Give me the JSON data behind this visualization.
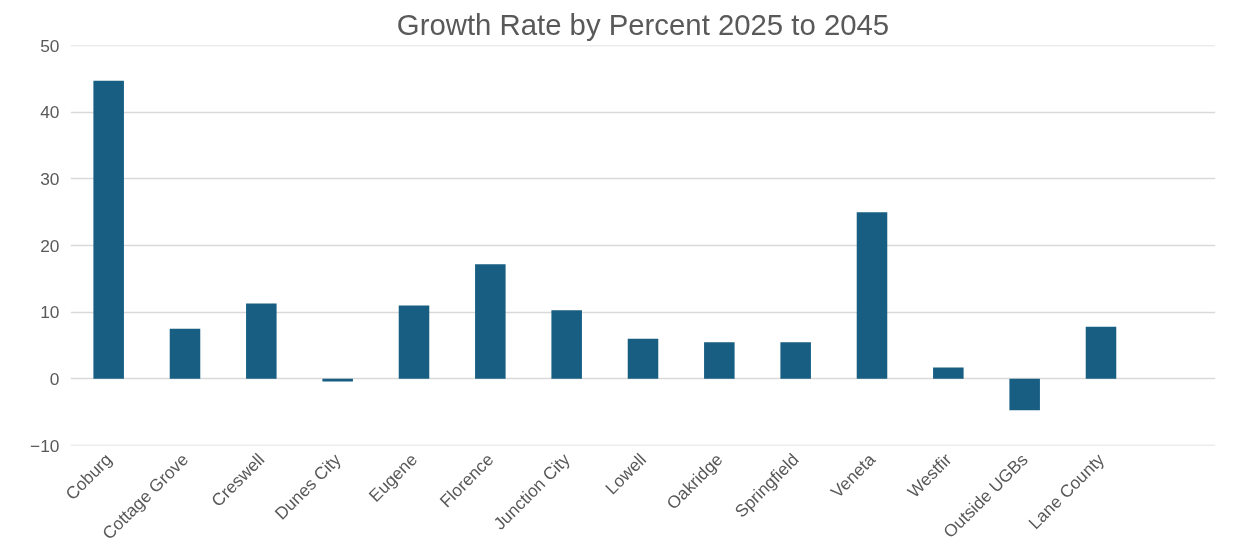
{
  "chart_data": {
    "type": "bar",
    "title": "Growth Rate by Percent 2025 to 2045",
    "categories": [
      "Coburg",
      "Cottage Grove",
      "Creswell",
      "Dunes City",
      "Eugene",
      "Florence",
      "Junction City",
      "Lowell",
      "Oakridge",
      "Springfield",
      "Veneta",
      "Westfir",
      "Outside UGBs",
      "Lane County"
    ],
    "values": [
      44.7,
      7.5,
      11.3,
      -0.4,
      11.0,
      17.2,
      10.3,
      6.0,
      5.5,
      5.5,
      25.0,
      1.7,
      -4.7,
      7.8
    ],
    "color": "#175e82",
    "ylim": [
      -10,
      50
    ],
    "yticks": [
      -10,
      0,
      10,
      20,
      30,
      40,
      50
    ],
    "grid": "y"
  }
}
